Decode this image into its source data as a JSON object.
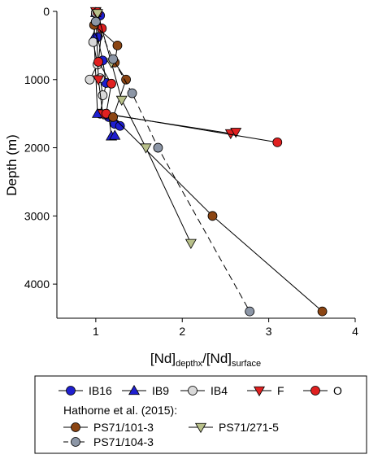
{
  "chart_data": {
    "type": "scatter",
    "xlabel": "[Nd]",
    "xlabel_sub": "depthx",
    "xlabel_mid": "/[Nd]",
    "xlabel_sub2": "surface",
    "ylabel": "Depth (m)",
    "xlim": [
      0.55,
      4.0
    ],
    "ylim": [
      0,
      4500
    ],
    "y_inverted": true,
    "x_ticks": [
      "1",
      "2",
      "3",
      "4"
    ],
    "y_ticks": [
      "0",
      "1000",
      "2000",
      "3000",
      "4000"
    ],
    "grid": false,
    "legend_position": "bottom",
    "legend_group_label": "Hathorne et al. (2015):",
    "series": [
      {
        "name": "IB16",
        "marker": "circle",
        "color": "#1f1fcf",
        "line": "solid",
        "points": [
          {
            "x": 1.0,
            "y": 30
          },
          {
            "x": 1.05,
            "y": 60
          },
          {
            "x": 1.02,
            "y": 380
          },
          {
            "x": 1.08,
            "y": 720
          },
          {
            "x": 1.12,
            "y": 1050
          },
          {
            "x": 1.05,
            "y": 1500
          },
          {
            "x": 1.15,
            "y": 1550
          },
          {
            "x": 1.22,
            "y": 1650
          },
          {
            "x": 1.28,
            "y": 1680
          }
        ]
      },
      {
        "name": "IB9",
        "marker": "triangle-up",
        "color": "#1f1fcf",
        "line": "solid",
        "points": [
          {
            "x": 1.0,
            "y": 20
          },
          {
            "x": 0.98,
            "y": 380
          },
          {
            "x": 1.02,
            "y": 1500
          },
          {
            "x": 1.15,
            "y": 1520
          },
          {
            "x": 1.18,
            "y": 1830
          },
          {
            "x": 1.22,
            "y": 1820
          }
        ]
      },
      {
        "name": "IB4",
        "marker": "circle",
        "color": "#d9d9d9",
        "line": "solid",
        "points": [
          {
            "x": 1.0,
            "y": 20
          },
          {
            "x": 0.97,
            "y": 450
          },
          {
            "x": 1.02,
            "y": 780
          },
          {
            "x": 0.93,
            "y": 1000
          },
          {
            "x": 1.05,
            "y": 980
          },
          {
            "x": 1.08,
            "y": 1230
          }
        ]
      },
      {
        "name": "F",
        "marker": "triangle-down",
        "color": "#e02020",
        "line": "solid",
        "points": [
          {
            "x": 1.0,
            "y": 0
          },
          {
            "x": 1.03,
            "y": 1000
          },
          {
            "x": 1.08,
            "y": 1500
          },
          {
            "x": 2.56,
            "y": 1790
          },
          {
            "x": 2.62,
            "y": 1770
          }
        ]
      },
      {
        "name": "O",
        "marker": "circle",
        "color": "#e02020",
        "line": "solid",
        "points": [
          {
            "x": 1.02,
            "y": 10
          },
          {
            "x": 1.07,
            "y": 250
          },
          {
            "x": 1.03,
            "y": 740
          },
          {
            "x": 1.18,
            "y": 1060
          },
          {
            "x": 1.12,
            "y": 1500
          },
          {
            "x": 3.1,
            "y": 1920
          }
        ]
      },
      {
        "name": "PS71/101-3",
        "marker": "circle",
        "color": "#8b4513",
        "line": "solid",
        "points": [
          {
            "x": 0.98,
            "y": 200
          },
          {
            "x": 1.25,
            "y": 500
          },
          {
            "x": 1.22,
            "y": 750
          },
          {
            "x": 1.35,
            "y": 1000
          },
          {
            "x": 1.2,
            "y": 1550
          },
          {
            "x": 2.35,
            "y": 3000
          },
          {
            "x": 3.62,
            "y": 4400
          }
        ]
      },
      {
        "name": "PS71/271-5",
        "marker": "triangle-down",
        "color": "#b8c08a",
        "line": "solid",
        "points": [
          {
            "x": 1.02,
            "y": 30
          },
          {
            "x": 1.18,
            "y": 750
          },
          {
            "x": 1.3,
            "y": 1300
          },
          {
            "x": 1.58,
            "y": 2000
          },
          {
            "x": 2.1,
            "y": 3400
          }
        ]
      },
      {
        "name": "PS71/104-3",
        "marker": "circle",
        "color": "#8c96a6",
        "line": "dashed",
        "points": [
          {
            "x": 1.0,
            "y": 150
          },
          {
            "x": 1.2,
            "y": 700
          },
          {
            "x": 1.42,
            "y": 1200
          },
          {
            "x": 1.72,
            "y": 2000
          },
          {
            "x": 2.78,
            "y": 4400
          }
        ]
      }
    ]
  }
}
